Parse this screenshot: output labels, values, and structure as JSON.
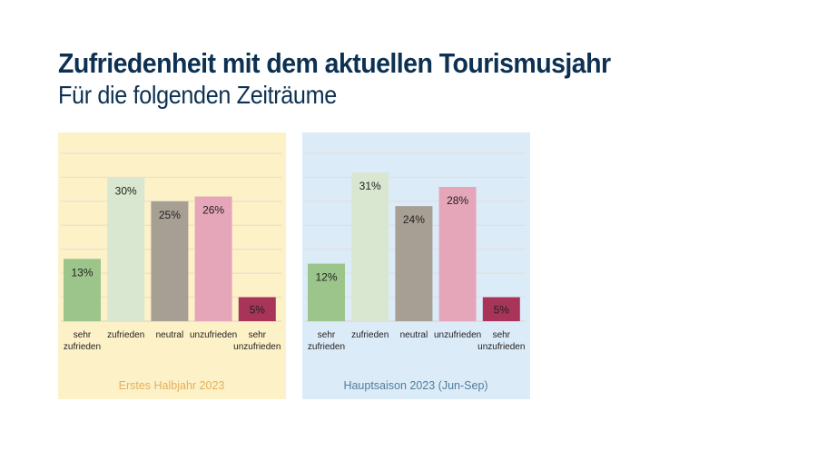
{
  "header": {
    "title": "Zufriedenheit mit dem aktuellen Tourismusjahr",
    "subtitle": "Für die folgenden Zeiträume"
  },
  "colors": {
    "title": "#0d3152",
    "sehr_zufrieden": "#9cc58b",
    "zufrieden": "#d9e7d0",
    "neutral": "#a79f93",
    "unzufrieden": "#e5a6b9",
    "sehr_unzufrieden": "#a8345a"
  },
  "chart_data": [
    {
      "type": "bar",
      "title": "Erstes Halbjahr 2023",
      "background": "#fdf1c7",
      "caption_color": "#e2b25c",
      "categories": [
        [
          "sehr",
          "zufrieden"
        ],
        [
          "zufrieden"
        ],
        [
          "neutral"
        ],
        [
          "unzufrieden"
        ],
        [
          "sehr",
          "unzufrieden"
        ]
      ],
      "values": [
        13,
        30,
        25,
        26,
        5
      ],
      "labels": [
        "13%",
        "30%",
        "25%",
        "26%",
        "5%"
      ],
      "ylim": [
        0,
        35
      ],
      "grid": true,
      "grid_step": 5
    },
    {
      "type": "bar",
      "title": "Hauptsaison 2023 (Jun-Sep)",
      "background": "#dcebf8",
      "caption_color": "#4f7e9c",
      "categories": [
        [
          "sehr",
          "zufrieden"
        ],
        [
          "zufrieden"
        ],
        [
          "neutral"
        ],
        [
          "unzufrieden"
        ],
        [
          "sehr",
          "unzufrieden"
        ]
      ],
      "values": [
        12,
        31,
        24,
        28,
        5
      ],
      "labels": [
        "12%",
        "31%",
        "24%",
        "28%",
        "5%"
      ],
      "ylim": [
        0,
        35
      ],
      "grid": true,
      "grid_step": 5
    }
  ]
}
